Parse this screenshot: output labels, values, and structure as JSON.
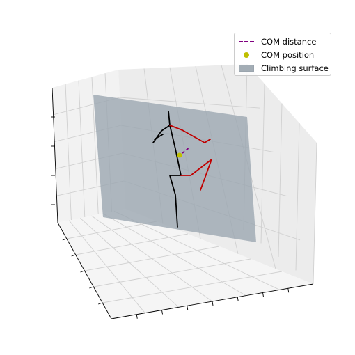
{
  "chart_data": {
    "type": "3d-line",
    "title": "",
    "grid": true,
    "legend_placement": "top-right",
    "legend": [
      {
        "label": "COM distance",
        "kind": "dashed-line",
        "color": "#800080"
      },
      {
        "label": "COM position",
        "kind": "marker",
        "color": "#bfbf00"
      },
      {
        "label": "Climbing surface",
        "kind": "patch",
        "color": "#9aa5b0"
      }
    ],
    "colors": {
      "body": "#000000",
      "right_limbs": "#c00000",
      "com_distance": "#800080",
      "com_position": "#bfbf00",
      "surface": "#9aa5b0"
    }
  }
}
